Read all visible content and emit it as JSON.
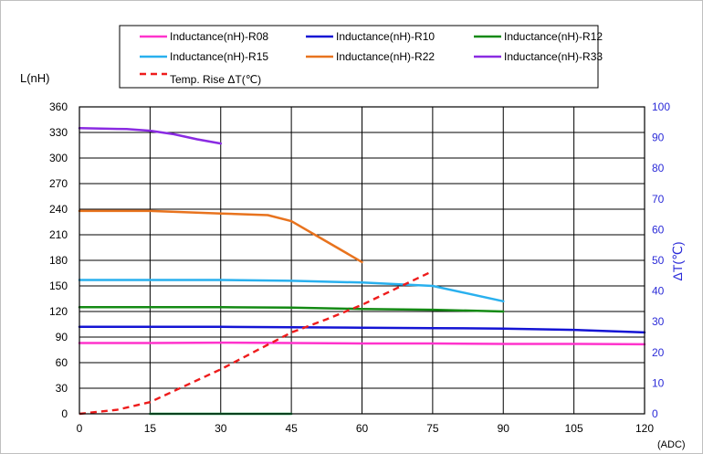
{
  "chart_data": {
    "type": "line",
    "title": "",
    "xlabel": "(ADC)",
    "ylabel": "L(nH)",
    "y2label": "ΔT(℃)",
    "xlim": [
      0,
      120
    ],
    "ylim": [
      0,
      360
    ],
    "y2lim": [
      0,
      100
    ],
    "xticks": [
      0,
      15,
      30,
      45,
      60,
      75,
      90,
      105,
      120
    ],
    "yticks": [
      0,
      30,
      60,
      90,
      120,
      150,
      180,
      210,
      240,
      270,
      300,
      330,
      360
    ],
    "y2ticks": [
      0,
      10,
      20,
      30,
      40,
      50,
      60,
      70,
      80,
      90,
      100
    ],
    "grid": true,
    "legend_position": "top",
    "series": [
      {
        "name": "Inductance(nH)-R08",
        "color": "#ff33cc",
        "axis": "left",
        "style": "solid",
        "x": [
          0,
          15,
          30,
          45,
          60,
          75,
          90,
          105,
          120
        ],
        "y": [
          83,
          83,
          83.5,
          83,
          82.5,
          82.5,
          82,
          82,
          81.5
        ]
      },
      {
        "name": "Inductance(nH)-R10",
        "color": "#1414d4",
        "axis": "left",
        "style": "solid",
        "x": [
          0,
          15,
          30,
          45,
          60,
          75,
          90,
          105,
          120
        ],
        "y": [
          102,
          102,
          102,
          101.5,
          101,
          100.5,
          100,
          98.5,
          95.5
        ]
      },
      {
        "name": "Inductance(nH)-R12",
        "color": "#148a14",
        "axis": "left",
        "style": "solid",
        "x": [
          0,
          15,
          30,
          45,
          60,
          75,
          90
        ],
        "y": [
          125,
          125,
          125,
          124.5,
          123,
          122,
          120
        ]
      },
      {
        "name": "Inductance(nH)-R15",
        "color": "#29b0ee",
        "axis": "left",
        "style": "solid",
        "x": [
          0,
          15,
          30,
          45,
          60,
          75,
          90
        ],
        "y": [
          157,
          157,
          157,
          156,
          154,
          150,
          132
        ]
      },
      {
        "name": "Inductance(nH)-R22",
        "color": "#e8731e",
        "axis": "left",
        "style": "solid",
        "x": [
          0,
          15,
          30,
          40,
          45,
          50,
          60
        ],
        "y": [
          238,
          238,
          235,
          233,
          226,
          210,
          178
        ]
      },
      {
        "name": "Inductance(nH)-R33",
        "color": "#8a2be2",
        "axis": "left",
        "style": "solid",
        "x": [
          0,
          10,
          15,
          20,
          25,
          30
        ],
        "y": [
          335,
          334,
          332,
          328,
          322,
          317
        ]
      },
      {
        "name": "Temp. Rise ΔT(℃)",
        "color": "#ee1c1c",
        "axis": "right",
        "style": "dashed",
        "x": [
          0,
          8,
          15,
          22,
          30,
          37.5,
          45,
          52.5,
          60,
          67.5,
          75
        ],
        "y": [
          0,
          1.3,
          3.8,
          8.8,
          14.5,
          20.5,
          26.5,
          30.8,
          35.5,
          41,
          46.5
        ]
      },
      {
        "name": "",
        "color": "#1aa34a",
        "axis": "left",
        "style": "solid",
        "x": [
          15,
          45
        ],
        "y": [
          0,
          0
        ]
      }
    ]
  }
}
